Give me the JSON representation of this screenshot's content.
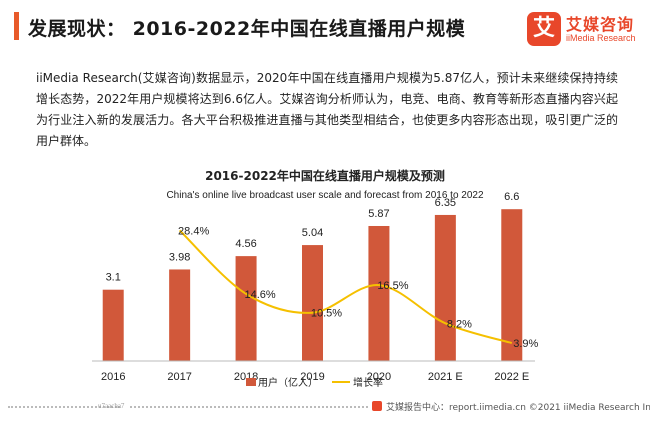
{
  "header": {
    "title": "发展现状： 2016-2022年中国在线直播用户规模",
    "logo_mark": "艾",
    "logo_cn": "艾媒咨询",
    "logo_en": "iiMedia Research"
  },
  "paragraph": "iiMedia Research(艾媒咨询)数据显示，2020年中国在线直播用户规模为5.87亿人，预计未来继续保持持续增长态势，2022年用户规模将达到6.6亿人。艾媒咨询分析师认为，电竞、电商、教育等新形态直播内容兴起为行业注入新的发展活力。各大平台积极推进直播与其他类型相结合，也使更多内容形态出现，吸引更广泛的用户群体。",
  "chart_data": {
    "type": "bar",
    "title": "2016-2022年中国在线直播用户规模及预测",
    "subtitle": "China's online live broadcast user scale and forecast from 2016 to 2022",
    "categories": [
      "2016",
      "2017",
      "2018",
      "2019",
      "2020",
      "2021 E",
      "2022 E"
    ],
    "series": [
      {
        "name": "用户（亿人）",
        "type": "bar",
        "color": "#d1583a",
        "values": [
          3.1,
          3.98,
          4.56,
          5.04,
          5.87,
          6.35,
          6.6
        ],
        "labels": [
          "3.1",
          "3.98",
          "4.56",
          "5.04",
          "5.87",
          "6.35",
          "6.6"
        ]
      },
      {
        "name": "增长率",
        "type": "line",
        "color": "#f5c000",
        "values": [
          null,
          28.4,
          14.6,
          10.5,
          16.5,
          8.2,
          3.9
        ],
        "labels": [
          "",
          "28.4%",
          "14.6%",
          "10.5%",
          "16.5%",
          "8.2%",
          "3.9%"
        ]
      }
    ],
    "ylim": [
      0,
      7
    ],
    "y2lim": [
      0,
      35
    ],
    "grid": false,
    "legend": "bottom"
  },
  "footer": {
    "code": "u7aacha7",
    "text": "艾媒报告中心：report.iimedia.cn  ©2021  iiMedia Research  Inc"
  }
}
